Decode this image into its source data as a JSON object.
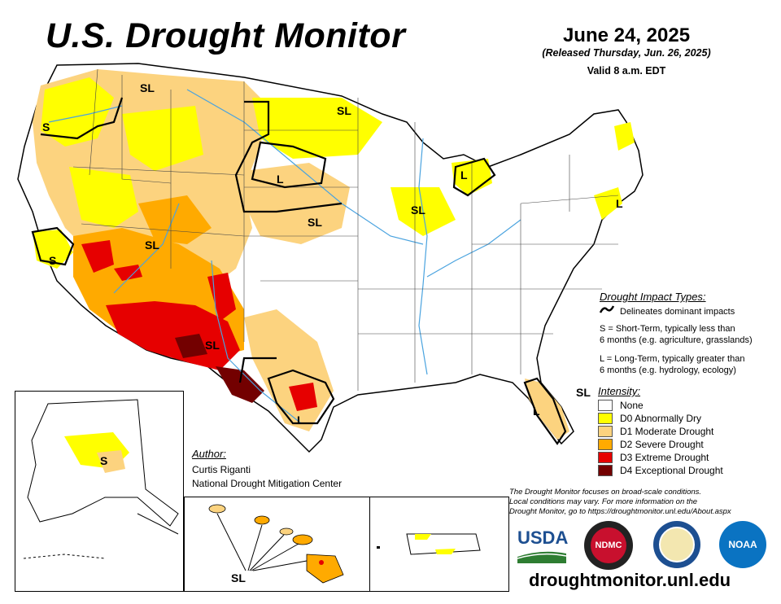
{
  "header": {
    "title": "U.S. Drought Monitor",
    "date": "June 24, 2025",
    "released": "(Released Thursday, Jun. 26, 2025)",
    "valid": "Valid 8 a.m. EDT"
  },
  "impact_types": {
    "heading": "Drought Impact Types:",
    "delineates": "Delineates dominant impacts",
    "short_term_1": "S = Short-Term, typically less than",
    "short_term_2": "6 months (e.g. agriculture, grasslands)",
    "long_term_1": "L = Long-Term, typically greater than",
    "long_term_2": "6 months (e.g. hydrology, ecology)"
  },
  "intensity": {
    "heading": "Intensity:",
    "levels": [
      {
        "label": "None",
        "color": "#ffffff"
      },
      {
        "label": "D0 Abnormally Dry",
        "color": "#ffff00"
      },
      {
        "label": "D1 Moderate Drought",
        "color": "#fcd37f"
      },
      {
        "label": "D2 Severe Drought",
        "color": "#ffaa00"
      },
      {
        "label": "D3 Extreme Drought",
        "color": "#e60000"
      },
      {
        "label": "D4 Exceptional Drought",
        "color": "#730000"
      }
    ]
  },
  "author": {
    "heading": "Author:",
    "name": "Curtis Riganti",
    "org": "National Drought Mitigation Center"
  },
  "note": {
    "line1": "The Drought Monitor focuses on broad-scale conditions.",
    "line2": "Local conditions may vary. For more information on the",
    "line3": "Drought Monitor, go to https://droughtmonitor.unl.edu/About.aspx"
  },
  "url": "droughtmonitor.unl.edu",
  "impact_labels": {
    "sl": "SL",
    "s": "S",
    "l": "L"
  },
  "logos": {
    "usda": "USDA",
    "ndmc": "NDMC",
    "noaa": "NOAA"
  },
  "colors": {
    "none": "#ffffff",
    "d0": "#ffff00",
    "d1": "#fcd37f",
    "d2": "#ffaa00",
    "d3": "#e60000",
    "d4": "#730000",
    "water": "#4aa3df",
    "border": "#000000"
  }
}
